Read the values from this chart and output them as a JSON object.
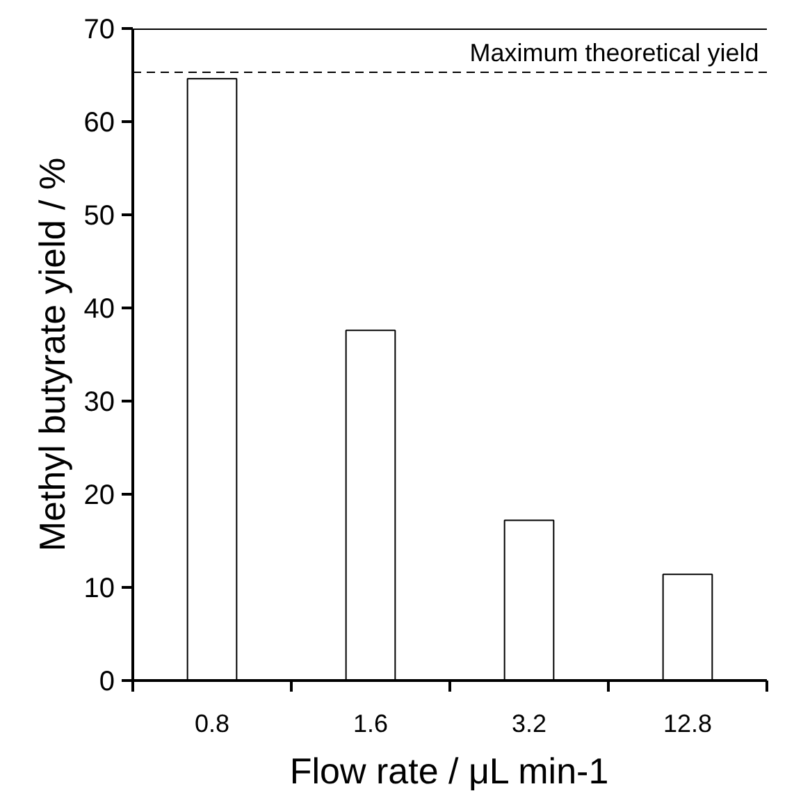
{
  "chart_data": {
    "type": "bar",
    "xlabel": "Flow rate / μL min-1",
    "ylabel": "Methyl butyrate yield / %",
    "categories": [
      "0.8",
      "1.6",
      "3.2",
      "12.8"
    ],
    "series": [
      {
        "color": "#ffffff",
        "values": [
          64.6,
          37.6,
          17.2,
          11.4
        ]
      }
    ],
    "ylim": [
      0,
      70
    ],
    "yticks": [
      0,
      10,
      20,
      30,
      40,
      50,
      60,
      70
    ],
    "grid": false,
    "ref_lines": [
      {
        "axis": "y",
        "value": 65.3,
        "label": "Maximum theoretical yield",
        "color": "#000000",
        "line_style": "dashed"
      }
    ]
  }
}
